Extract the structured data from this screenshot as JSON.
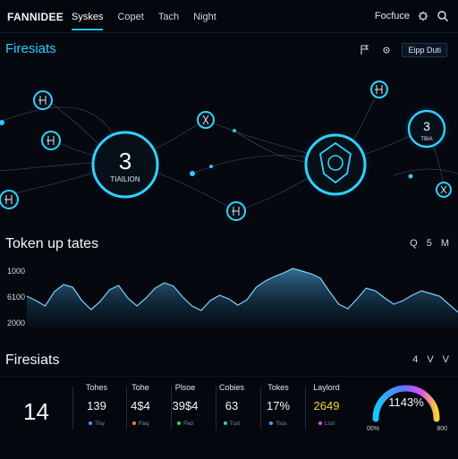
{
  "header": {
    "brand": "FANNIDEE",
    "nav": [
      "Syskes",
      "Copet",
      "Tach",
      "Night"
    ],
    "right_label": "Focfuce"
  },
  "sections": {
    "top_title": "Firesiats",
    "top_button": "Eipp Duti",
    "middle_title": "Token up tates",
    "middle_tools": [
      "Q",
      "5",
      "M"
    ],
    "bottom_title": "Firesiats",
    "bottom_tools": [
      "4",
      "V",
      "V"
    ]
  },
  "graph": {
    "node_left_value": "3",
    "node_left_label": "TIAILION",
    "node_right_value": "3",
    "node_right_label": "TBIA"
  },
  "chart": {
    "y_labels": [
      "1000",
      "6100",
      "2000"
    ],
    "series": [
      35,
      30,
      24,
      40,
      48,
      45,
      30,
      20,
      29,
      42,
      47,
      33,
      24,
      33,
      44,
      50,
      46,
      34,
      24,
      19,
      30,
      36,
      32,
      25,
      31,
      45,
      52,
      57,
      61,
      66,
      63,
      60,
      55,
      40,
      26,
      21,
      32,
      44,
      41,
      33,
      26,
      30,
      36,
      41,
      38,
      35,
      26,
      17
    ]
  },
  "stats": {
    "big": "14",
    "items": [
      {
        "label": "Tohes",
        "value": "139",
        "legend": "Tisy",
        "color": "#35a2ff"
      },
      {
        "label": "Tohe",
        "value": "4$4",
        "legend": "Fiaq",
        "color": "#ff7a2e"
      },
      {
        "label": "Plsoe",
        "value": "39$4",
        "legend": "Pad",
        "color": "#37d35a"
      },
      {
        "label": "Cobies",
        "value": "63",
        "legend": "Tust",
        "color": "#25d4d9"
      },
      {
        "label": "Tokes",
        "value": "17%",
        "legend": "Tsos",
        "color": "#3ea0ff"
      },
      {
        "label": "Laylord",
        "value": "2649",
        "legend": "Lsst",
        "color": "#e24df0"
      }
    ],
    "gauge": {
      "percent_text": "1143%",
      "left": "00%",
      "right": "800"
    }
  },
  "colors": {
    "accent": "#2ad0ff",
    "gold": "#f4d233"
  }
}
